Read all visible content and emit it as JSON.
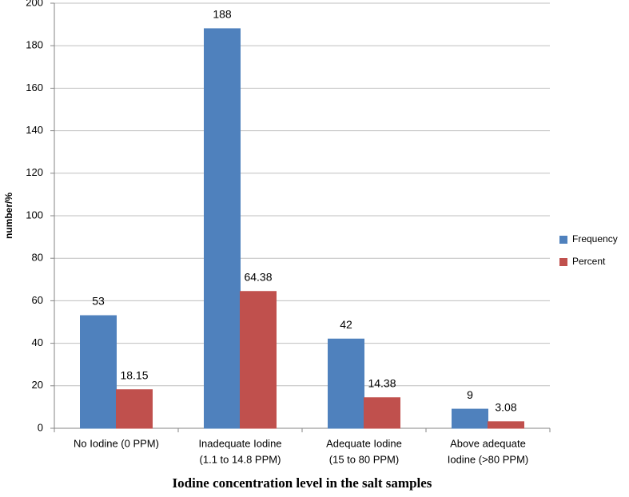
{
  "chart_data": {
    "type": "bar",
    "x_label": "Iodine concentration level in the salt samples",
    "y_label": "number/%",
    "categories": [
      [
        "No Iodine (0 PPM)"
      ],
      [
        "Inadequate Iodine",
        "(1.1 to 14.8 PPM)"
      ],
      [
        "Adequate Iodine",
        "(15 to 80 PPM)"
      ],
      [
        "Above adequate",
        "Iodine (>80 PPM)"
      ]
    ],
    "series": [
      {
        "name": "Frequency",
        "color": "#4f81bd",
        "values": [
          53,
          188,
          42,
          9
        ]
      },
      {
        "name": "Percent",
        "color": "#c0504d",
        "values": [
          18.15,
          64.38,
          14.38,
          3.08
        ]
      }
    ],
    "ylim": [
      0,
      200
    ],
    "yticks": [
      0,
      20,
      40,
      60,
      80,
      100,
      120,
      140,
      160,
      180,
      200
    ],
    "grid": true,
    "legend": "right"
  }
}
